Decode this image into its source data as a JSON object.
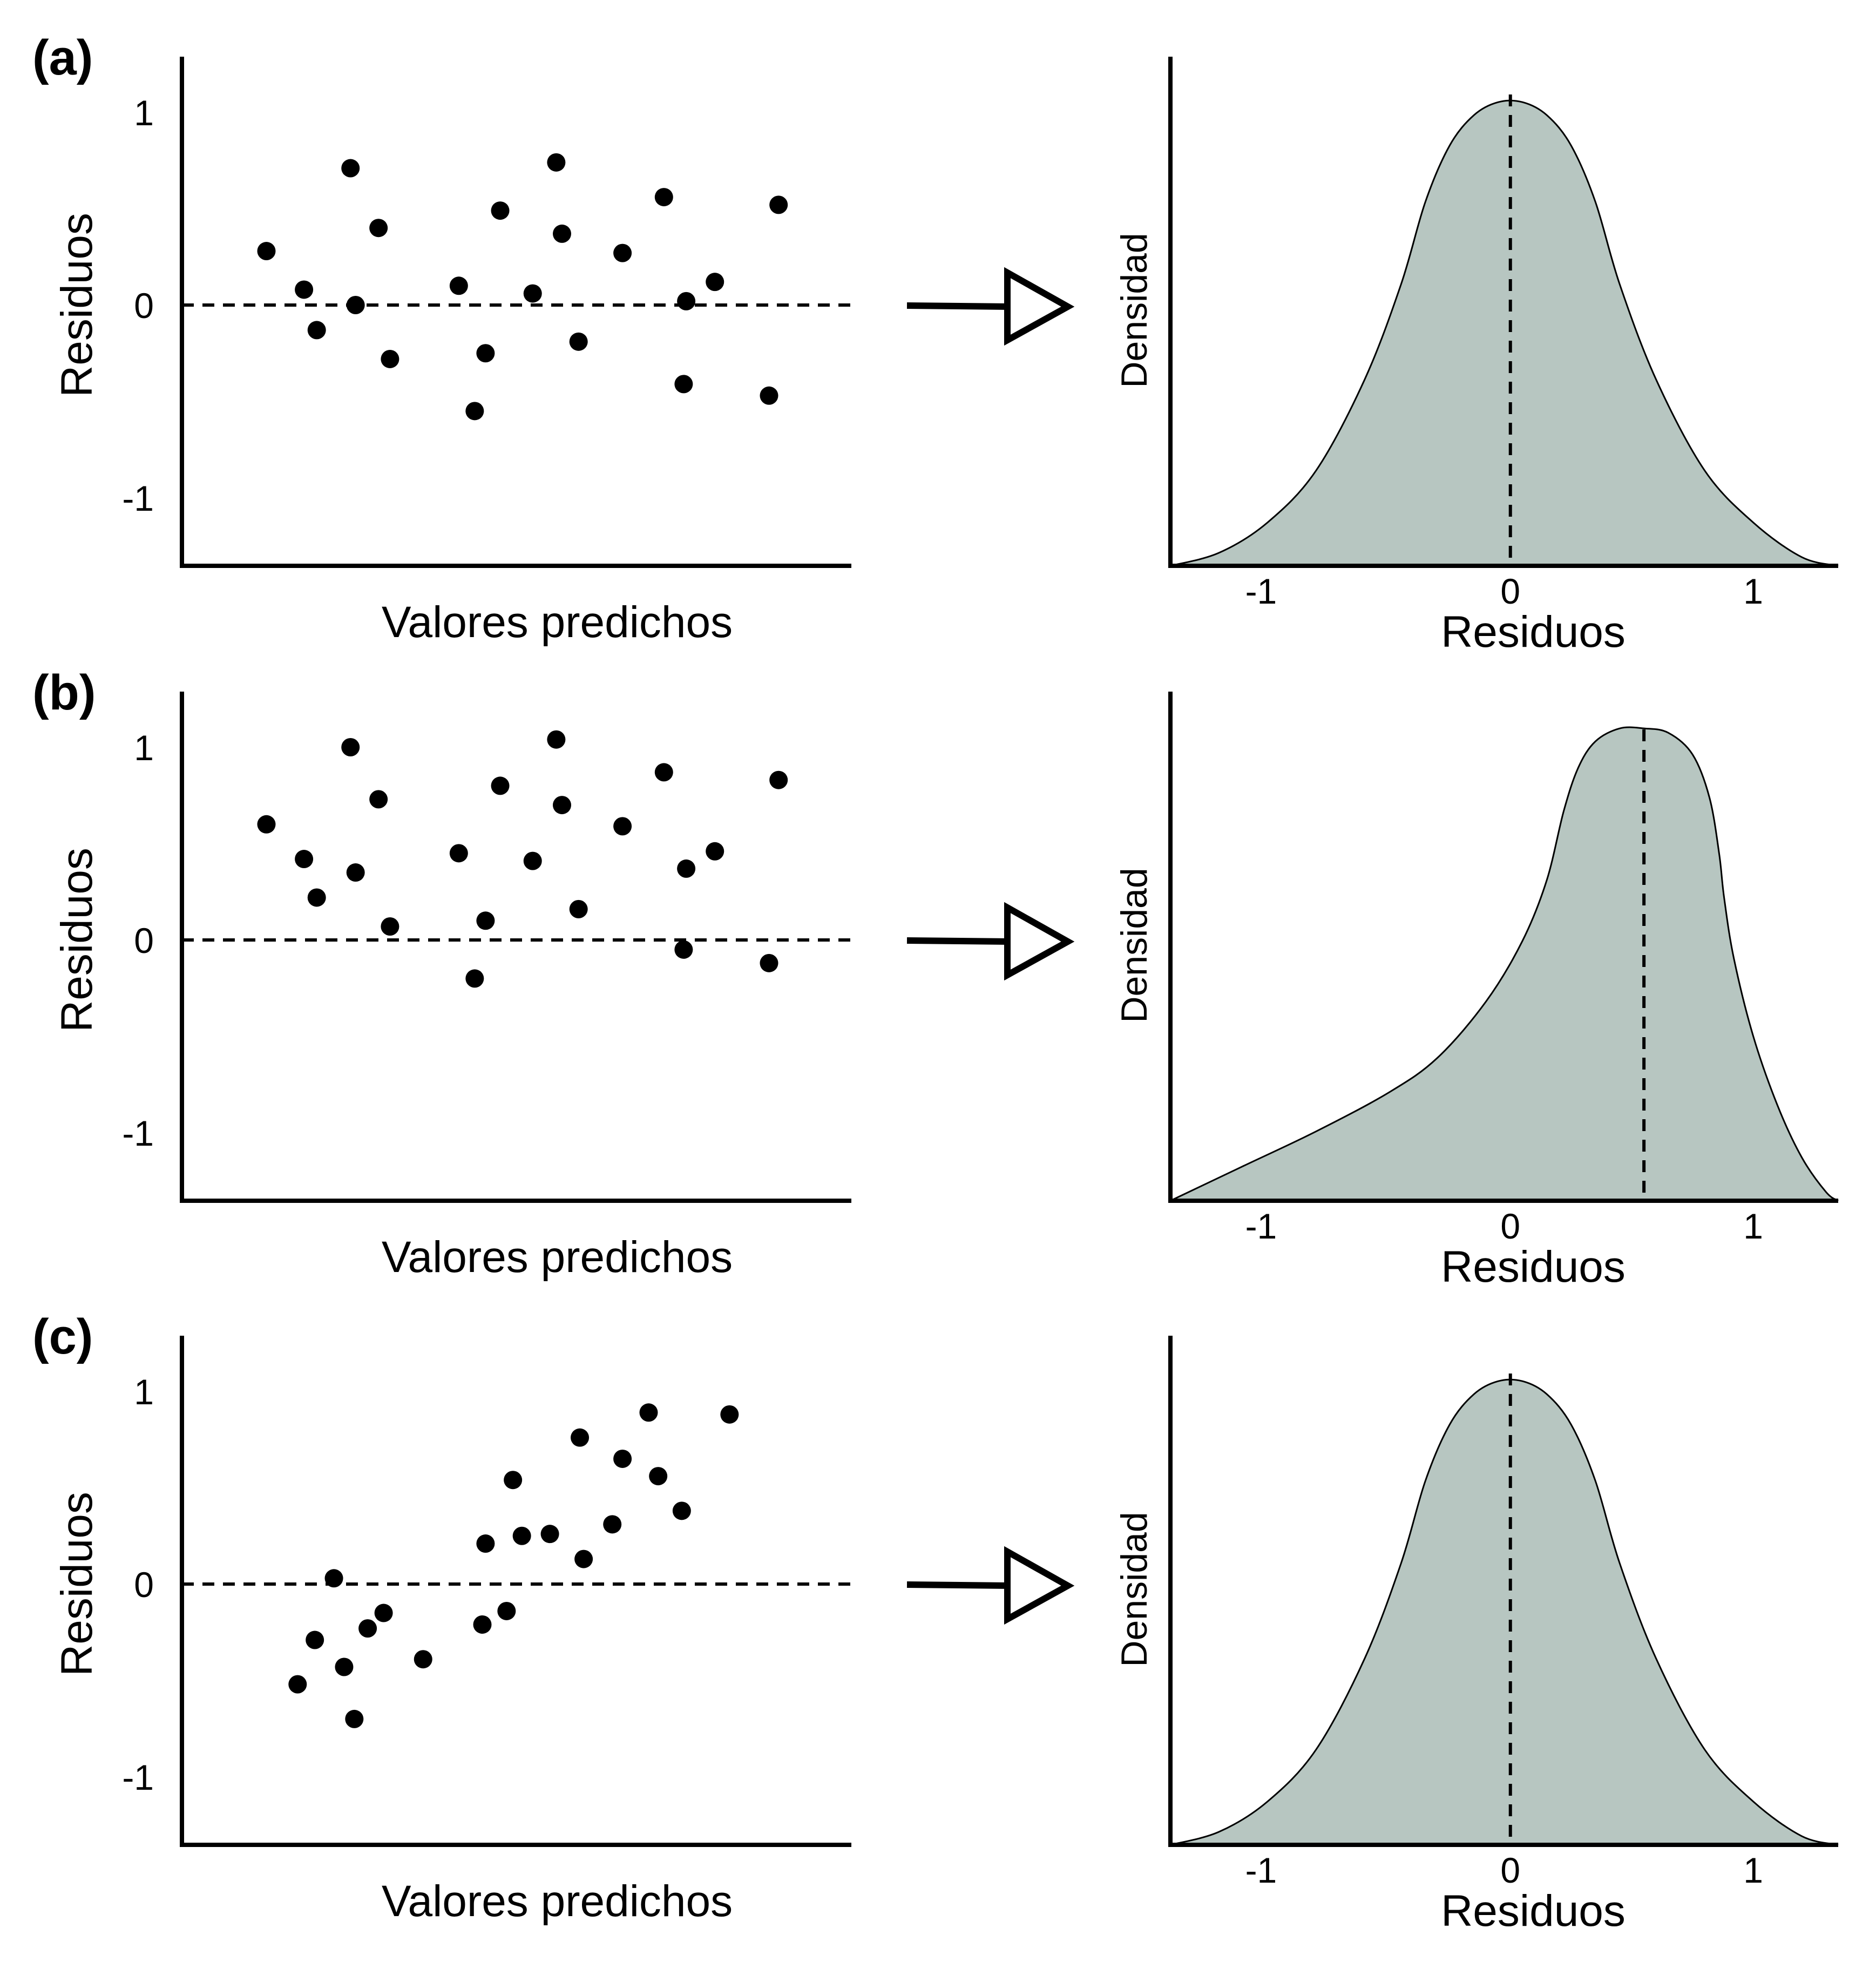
{
  "colors": {
    "density_fill": "#b7c6c1",
    "ink": "#000000"
  },
  "chart_data": [
    {
      "panel": "(a)",
      "type": "scatter",
      "xlabel": "Valores predichos",
      "ylabel": "Residuos",
      "yticks": [
        "1",
        "0",
        "-1"
      ],
      "ylim": [
        -1.25,
        1.2
      ],
      "xlim": [
        0,
        100
      ],
      "reference_line": 0,
      "points": [
        {
          "x": 8.6,
          "y": 0.28
        },
        {
          "x": 14.5,
          "y": 0.08
        },
        {
          "x": 16.5,
          "y": -0.13
        },
        {
          "x": 21.8,
          "y": 0.71
        },
        {
          "x": 22.6,
          "y": 0.0
        },
        {
          "x": 26.2,
          "y": 0.4
        },
        {
          "x": 28.0,
          "y": -0.28
        },
        {
          "x": 38.8,
          "y": 0.1
        },
        {
          "x": 41.3,
          "y": -0.55
        },
        {
          "x": 43.0,
          "y": -0.25
        },
        {
          "x": 45.3,
          "y": 0.49
        },
        {
          "x": 50.4,
          "y": 0.06
        },
        {
          "x": 54.1,
          "y": 0.74
        },
        {
          "x": 55.0,
          "y": 0.37
        },
        {
          "x": 57.6,
          "y": -0.19
        },
        {
          "x": 64.5,
          "y": 0.27
        },
        {
          "x": 71.0,
          "y": 0.56
        },
        {
          "x": 74.1,
          "y": -0.41
        },
        {
          "x": 74.5,
          "y": 0.02
        },
        {
          "x": 79.0,
          "y": 0.12
        },
        {
          "x": 87.5,
          "y": -0.47
        },
        {
          "x": 89.0,
          "y": 0.52
        }
      ]
    },
    {
      "panel": "(a)",
      "type": "area",
      "xlabel": "Residuos",
      "ylabel": "Densidad",
      "xticks": [
        "-1",
        "0",
        "1"
      ],
      "xlim": [
        -1.4,
        1.35
      ],
      "ylim": [
        0,
        1.15
      ],
      "center_line": 0,
      "x": [
        -1.4,
        -1.2,
        -1.0,
        -0.8,
        -0.6,
        -0.45,
        -0.35,
        -0.25,
        -0.15,
        -0.05,
        0.05,
        0.15,
        0.25,
        0.35,
        0.45,
        0.6,
        0.8,
        1.0,
        1.2,
        1.35
      ],
      "y": [
        0.0,
        0.03,
        0.1,
        0.22,
        0.43,
        0.65,
        0.84,
        0.97,
        1.04,
        1.07,
        1.07,
        1.04,
        0.97,
        0.84,
        0.65,
        0.43,
        0.22,
        0.1,
        0.02,
        0.0
      ]
    },
    {
      "panel": "(b)",
      "type": "scatter",
      "xlabel": "Valores predichos",
      "ylabel": "Residuos",
      "yticks": [
        "1",
        "0",
        "-1"
      ],
      "ylim": [
        -1.25,
        1.2
      ],
      "xlim": [
        0,
        100
      ],
      "reference_line": 0,
      "points": [
        {
          "x": 8.6,
          "y": 0.6
        },
        {
          "x": 14.5,
          "y": 0.42
        },
        {
          "x": 16.5,
          "y": 0.22
        },
        {
          "x": 21.8,
          "y": 1.0
        },
        {
          "x": 22.6,
          "y": 0.35
        },
        {
          "x": 26.2,
          "y": 0.73
        },
        {
          "x": 28.0,
          "y": 0.07
        },
        {
          "x": 38.8,
          "y": 0.45
        },
        {
          "x": 41.3,
          "y": -0.2
        },
        {
          "x": 43.0,
          "y": 0.1
        },
        {
          "x": 45.3,
          "y": 0.8
        },
        {
          "x": 50.4,
          "y": 0.41
        },
        {
          "x": 54.1,
          "y": 1.04
        },
        {
          "x": 55.0,
          "y": 0.7
        },
        {
          "x": 57.6,
          "y": 0.16
        },
        {
          "x": 64.5,
          "y": 0.59
        },
        {
          "x": 71.0,
          "y": 0.87
        },
        {
          "x": 74.1,
          "y": -0.05
        },
        {
          "x": 74.5,
          "y": 0.37
        },
        {
          "x": 79.0,
          "y": 0.46
        },
        {
          "x": 87.5,
          "y": -0.12
        },
        {
          "x": 89.0,
          "y": 0.83
        }
      ]
    },
    {
      "panel": "(b)",
      "type": "area",
      "xlabel": "Residuos",
      "ylabel": "Densidad",
      "xticks": [
        "-1",
        "0",
        "1"
      ],
      "xlim": [
        -1.4,
        1.35
      ],
      "ylim": [
        0,
        1.15
      ],
      "center_line": 0.55,
      "x": [
        -1.4,
        -1.1,
        -0.8,
        -0.5,
        -0.3,
        -0.1,
        0.05,
        0.15,
        0.22,
        0.28,
        0.35,
        0.45,
        0.55,
        0.65,
        0.75,
        0.82,
        0.86,
        0.88,
        0.92,
        1.0,
        1.1,
        1.2,
        1.3,
        1.35
      ],
      "y": [
        0.0,
        0.08,
        0.16,
        0.25,
        0.33,
        0.46,
        0.6,
        0.74,
        0.9,
        1.0,
        1.06,
        1.09,
        1.09,
        1.08,
        1.03,
        0.93,
        0.8,
        0.7,
        0.56,
        0.38,
        0.22,
        0.1,
        0.02,
        0.0
      ]
    },
    {
      "panel": "(c)",
      "type": "scatter",
      "xlabel": "Valores predichos",
      "ylabel": "Residuos",
      "yticks": [
        "1",
        "0",
        "-1"
      ],
      "ylim": [
        -1.25,
        1.2
      ],
      "xlim": [
        0,
        100
      ],
      "reference_line": 0,
      "points": [
        {
          "x": 13.5,
          "y": -0.52
        },
        {
          "x": 16.2,
          "y": -0.29
        },
        {
          "x": 19.2,
          "y": 0.03
        },
        {
          "x": 20.8,
          "y": -0.43
        },
        {
          "x": 22.4,
          "y": -0.7
        },
        {
          "x": 24.5,
          "y": -0.23
        },
        {
          "x": 27.0,
          "y": -0.15
        },
        {
          "x": 33.2,
          "y": -0.39
        },
        {
          "x": 42.5,
          "y": -0.21
        },
        {
          "x": 43.0,
          "y": 0.21
        },
        {
          "x": 46.3,
          "y": -0.14
        },
        {
          "x": 47.3,
          "y": 0.54
        },
        {
          "x": 48.7,
          "y": 0.25
        },
        {
          "x": 53.1,
          "y": 0.26
        },
        {
          "x": 57.8,
          "y": 0.76
        },
        {
          "x": 58.4,
          "y": 0.13
        },
        {
          "x": 62.9,
          "y": 0.31
        },
        {
          "x": 64.5,
          "y": 0.65
        },
        {
          "x": 68.6,
          "y": 0.89
        },
        {
          "x": 70.1,
          "y": 0.56
        },
        {
          "x": 73.8,
          "y": 0.38
        },
        {
          "x": 81.3,
          "y": 0.88
        }
      ]
    },
    {
      "panel": "(c)",
      "type": "area",
      "xlabel": "Residuos",
      "ylabel": "Densidad",
      "xticks": [
        "-1",
        "0",
        "1"
      ],
      "xlim": [
        -1.4,
        1.35
      ],
      "ylim": [
        0,
        1.15
      ],
      "center_line": 0,
      "x": [
        -1.4,
        -1.2,
        -1.0,
        -0.8,
        -0.6,
        -0.45,
        -0.35,
        -0.25,
        -0.15,
        -0.05,
        0.05,
        0.15,
        0.25,
        0.35,
        0.45,
        0.6,
        0.8,
        1.0,
        1.2,
        1.35
      ],
      "y": [
        0.0,
        0.03,
        0.1,
        0.22,
        0.43,
        0.65,
        0.84,
        0.97,
        1.04,
        1.07,
        1.07,
        1.04,
        0.97,
        0.84,
        0.65,
        0.43,
        0.22,
        0.1,
        0.02,
        0.0
      ]
    }
  ]
}
